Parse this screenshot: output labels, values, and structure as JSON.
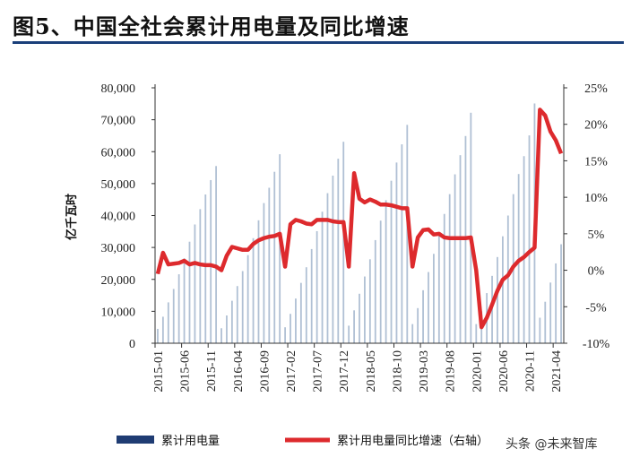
{
  "chart_data": {
    "type": "bar+line",
    "title": "图5、中国全社会累计用电量及同比增速",
    "ylabel_left": "亿千瓦时",
    "ylim_left": [
      0,
      80000
    ],
    "yticks_left": [
      "80,000",
      "70,000",
      "60,000",
      "50,000",
      "40,000",
      "30,000",
      "20,000",
      "10,000",
      "0"
    ],
    "ylim_right": [
      -10,
      25
    ],
    "yticks_right": [
      "25%",
      "20%",
      "15%",
      "10%",
      "5%",
      "0%",
      "-5%",
      "-10%"
    ],
    "x_tick_labels": [
      "2015-01",
      "2015-06",
      "2015-11",
      "2016-04",
      "2016-09",
      "2017-02",
      "2017-07",
      "2017-12",
      "2018-05",
      "2018-10",
      "2019-03",
      "2019-08",
      "2020-01",
      "2020-06",
      "2020-11",
      "2021-04"
    ],
    "months": [
      "2015-01",
      "2015-02",
      "2015-03",
      "2015-04",
      "2015-05",
      "2015-06",
      "2015-07",
      "2015-08",
      "2015-09",
      "2015-10",
      "2015-11",
      "2015-12",
      "2016-01",
      "2016-02",
      "2016-03",
      "2016-04",
      "2016-05",
      "2016-06",
      "2016-07",
      "2016-08",
      "2016-09",
      "2016-10",
      "2016-11",
      "2016-12",
      "2017-01",
      "2017-02",
      "2017-03",
      "2017-04",
      "2017-05",
      "2017-06",
      "2017-07",
      "2017-08",
      "2017-09",
      "2017-10",
      "2017-11",
      "2017-12",
      "2018-01",
      "2018-02",
      "2018-03",
      "2018-04",
      "2018-05",
      "2018-06",
      "2018-07",
      "2018-08",
      "2018-09",
      "2018-10",
      "2018-11",
      "2018-12",
      "2019-01",
      "2019-02",
      "2019-03",
      "2019-04",
      "2019-05",
      "2019-06",
      "2019-07",
      "2019-08",
      "2019-09",
      "2019-10",
      "2019-11",
      "2019-12",
      "2020-01",
      "2020-02",
      "2020-03",
      "2020-04",
      "2020-05",
      "2020-06",
      "2020-07",
      "2020-08",
      "2020-09",
      "2020-10",
      "2020-11",
      "2020-12",
      "2021-01",
      "2021-02",
      "2021-03",
      "2021-04",
      "2021-05"
    ],
    "series": [
      {
        "name": "累计用电量",
        "type": "bar",
        "axis": "left",
        "color": "#b0c0d4",
        "values": [
          4500,
          8300,
          12800,
          17000,
          21600,
          26600,
          31800,
          37200,
          42000,
          46600,
          51100,
          55500,
          4700,
          8700,
          13300,
          17900,
          22600,
          27600,
          32900,
          38500,
          43900,
          48700,
          53700,
          59200,
          5000,
          9200,
          14000,
          18900,
          23800,
          29500,
          35100,
          41200,
          47000,
          52500,
          57800,
          63100,
          5500,
          10300,
          15500,
          20900,
          26300,
          32300,
          38400,
          44800,
          50900,
          56600,
          62300,
          68400,
          6000,
          11000,
          16600,
          22300,
          28000,
          34000,
          40500,
          46700,
          52900,
          58900,
          64900,
          72200,
          6000,
          10000,
          15700,
          21100,
          27000,
          33500,
          40000,
          46700,
          53000,
          58600,
          65100,
          75100,
          8000,
          13000,
          19000,
          25000,
          31000
        ]
      },
      {
        "name": "累计用电量同比增速（右轴）",
        "type": "line",
        "axis": "right",
        "color": "#dd2a2d",
        "values": [
          -0.5,
          2.4,
          0.8,
          0.9,
          1.0,
          1.3,
          0.8,
          1.0,
          0.8,
          0.7,
          0.7,
          0.5,
          0.0,
          2.0,
          3.2,
          3.0,
          2.8,
          2.8,
          3.6,
          4.1,
          4.4,
          4.6,
          4.7,
          5.0,
          0.5,
          6.3,
          6.9,
          6.7,
          6.4,
          6.3,
          6.9,
          6.9,
          6.9,
          6.7,
          6.6,
          6.6,
          0.5,
          13.3,
          9.8,
          9.3,
          9.7,
          9.4,
          9.0,
          9.0,
          8.9,
          8.7,
          8.5,
          8.5,
          0.5,
          4.5,
          5.5,
          5.6,
          4.9,
          5.0,
          4.5,
          4.4,
          4.4,
          4.4,
          4.4,
          4.5,
          0.0,
          -7.8,
          -6.5,
          -4.7,
          -2.8,
          -1.3,
          -0.7,
          0.5,
          1.3,
          1.8,
          2.5,
          3.1,
          22.0,
          21.2,
          19.0,
          17.8,
          16.0
        ]
      }
    ],
    "legend": [
      "累计用电量",
      "累计用电量同比增速（右轴）"
    ],
    "legend_position": "bottom"
  },
  "watermark": "头条 @未来智库"
}
